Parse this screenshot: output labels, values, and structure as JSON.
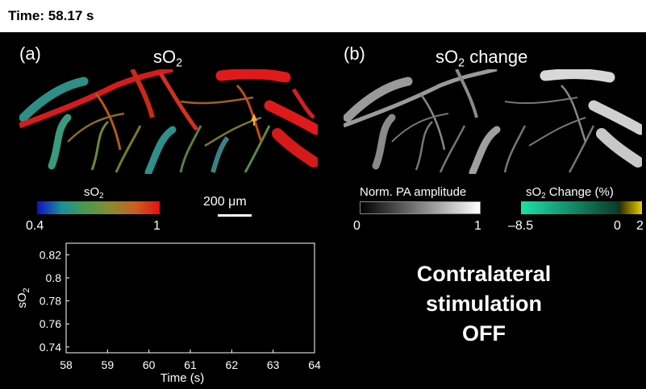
{
  "header": {
    "time_text": "Time: 58.17 s"
  },
  "panel_a": {
    "label": "(a)",
    "title_main": "sO",
    "title_sub": "2"
  },
  "panel_b": {
    "label": "(b)",
    "title_main": "sO",
    "title_sub": "2",
    "title_rest": " change"
  },
  "colorbar_so2": {
    "label_main": "sO",
    "label_sub": "2",
    "min": "0.4",
    "max": "1"
  },
  "scale_bar": {
    "label": "200 μm"
  },
  "colorbar_norm": {
    "label": "Norm. PA amplitude",
    "min": "0",
    "max": "1"
  },
  "colorbar_change": {
    "label_main": "sO",
    "label_sub": "2",
    "label_rest": " Change (%)",
    "min": "–8.5",
    "mid": "0",
    "max": "2"
  },
  "status": {
    "line1": "Contralateral",
    "line2": "stimulation",
    "line3": "OFF"
  },
  "chart_data": {
    "type": "line",
    "xlabel": "Time (s)",
    "ylabel_main": "sO",
    "ylabel_sub": "2",
    "xlim": [
      58,
      64
    ],
    "ylim": [
      0.735,
      0.83
    ],
    "xticks": [
      "58",
      "59",
      "60",
      "61",
      "62",
      "63",
      "64"
    ],
    "yticks": [
      "0.74",
      "0.76",
      "0.78",
      "0.8",
      "0.82"
    ],
    "series": []
  },
  "colors": {
    "background": "#000000",
    "vessel_red": "#e31a1a",
    "vessel_teal": "#2e8f86",
    "cbar_change_neg": "#1de0a8",
    "cbar_change_pos": "#e8d000"
  }
}
